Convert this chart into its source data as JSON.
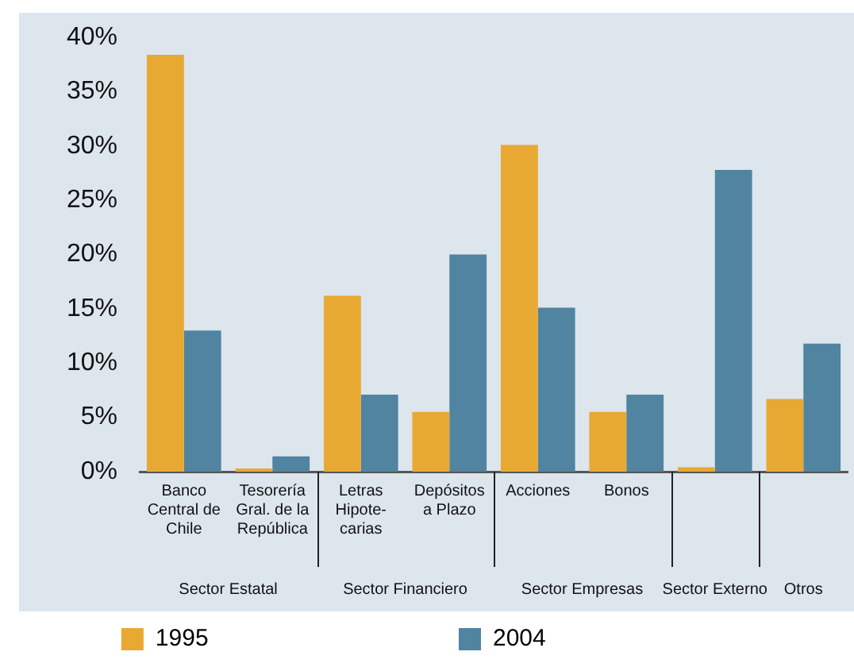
{
  "chart_data": {
    "type": "bar",
    "categories": [
      "Banco\nCentral de\nChile",
      "Tesorería\nGral. de la\nRepública",
      "Letras\nHipote-\ncarias",
      "Depósitos\na Plazo",
      "Acciones",
      "Bonos",
      null,
      null
    ],
    "series": [
      {
        "name": "1995",
        "color": "#e8a933",
        "values": [
          38.4,
          0.3,
          16.2,
          5.5,
          30.1,
          5.5,
          0.4,
          6.7
        ]
      },
      {
        "name": "2004",
        "color": "#5084a1",
        "values": [
          13.0,
          1.4,
          7.1,
          20.0,
          15.1,
          7.1,
          27.8,
          11.8
        ]
      }
    ],
    "ylim": [
      0,
      40
    ],
    "yticks": [
      {
        "value": 0,
        "label": "0%"
      },
      {
        "value": 5,
        "label": "5%"
      },
      {
        "value": 10,
        "label": "10%"
      },
      {
        "value": 15,
        "label": "15%"
      },
      {
        "value": 20,
        "label": "20%"
      },
      {
        "value": 25,
        "label": "25%"
      },
      {
        "value": 30,
        "label": "30%"
      },
      {
        "value": 35,
        "label": "35%"
      },
      {
        "value": 40,
        "label": "40%"
      }
    ],
    "annotations": [
      "Sector Estatal",
      "Sector Financiero",
      "Sector Empresas",
      "Sector Externo",
      "Otros"
    ],
    "grid": false,
    "legend": "bottom"
  }
}
